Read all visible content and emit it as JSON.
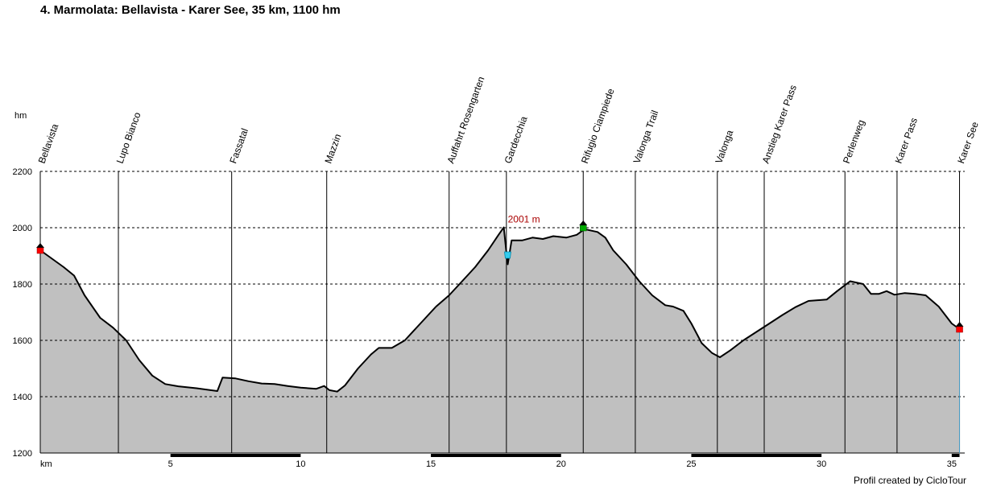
{
  "page": {
    "title": "4. Marmolata: Bellavista - Karer See, 35 km, 1100 hm",
    "credit": "Profil created by CicloTour"
  },
  "chart_data": {
    "type": "area",
    "title": "4. Marmolata: Bellavista - Karer See, 35 km, 1100 hm",
    "xlabel": "km",
    "ylabel": "hm",
    "xlim": [
      0,
      35.5
    ],
    "ylim": [
      1200,
      2200
    ],
    "x_ticks": [
      5,
      10,
      15,
      20,
      25,
      30,
      35
    ],
    "y_ticks": [
      1200,
      1400,
      1600,
      1800,
      2000,
      2200
    ],
    "grid": "horizontal dashed",
    "colors": {
      "fill": "#c0c0c0",
      "line": "#000000",
      "annotation": "#aa0000",
      "marker_start": "#ff0000",
      "marker_summit": "#00aa00",
      "marker_low": "#33ccee"
    },
    "series": [
      {
        "values": [
          {
            "x": 0.0,
            "y": 1920
          },
          {
            "x": 0.3,
            "y": 1900
          },
          {
            "x": 0.9,
            "y": 1860
          },
          {
            "x": 1.3,
            "y": 1830
          },
          {
            "x": 1.7,
            "y": 1760
          },
          {
            "x": 2.3,
            "y": 1680
          },
          {
            "x": 2.8,
            "y": 1645
          },
          {
            "x": 3.3,
            "y": 1600
          },
          {
            "x": 3.8,
            "y": 1530
          },
          {
            "x": 4.3,
            "y": 1475
          },
          {
            "x": 4.8,
            "y": 1445
          },
          {
            "x": 5.3,
            "y": 1437
          },
          {
            "x": 6.0,
            "y": 1430
          },
          {
            "x": 6.8,
            "y": 1420
          },
          {
            "x": 7.0,
            "y": 1468
          },
          {
            "x": 7.5,
            "y": 1465
          },
          {
            "x": 8.0,
            "y": 1455
          },
          {
            "x": 8.5,
            "y": 1447
          },
          {
            "x": 9.0,
            "y": 1445
          },
          {
            "x": 9.5,
            "y": 1438
          },
          {
            "x": 10.0,
            "y": 1432
          },
          {
            "x": 10.6,
            "y": 1428
          },
          {
            "x": 10.9,
            "y": 1438
          },
          {
            "x": 11.1,
            "y": 1423
          },
          {
            "x": 11.4,
            "y": 1418
          },
          {
            "x": 11.7,
            "y": 1440
          },
          {
            "x": 12.2,
            "y": 1500
          },
          {
            "x": 12.7,
            "y": 1550
          },
          {
            "x": 13.0,
            "y": 1573
          },
          {
            "x": 13.5,
            "y": 1573
          },
          {
            "x": 14.0,
            "y": 1600
          },
          {
            "x": 14.6,
            "y": 1660
          },
          {
            "x": 15.2,
            "y": 1720
          },
          {
            "x": 15.7,
            "y": 1760
          },
          {
            "x": 16.2,
            "y": 1810
          },
          {
            "x": 16.7,
            "y": 1860
          },
          {
            "x": 17.2,
            "y": 1920
          },
          {
            "x": 17.6,
            "y": 1975
          },
          {
            "x": 17.8,
            "y": 2001
          },
          {
            "x": 17.9,
            "y": 1910
          },
          {
            "x": 17.95,
            "y": 1870
          },
          {
            "x": 18.1,
            "y": 1955
          },
          {
            "x": 18.5,
            "y": 1955
          },
          {
            "x": 18.9,
            "y": 1965
          },
          {
            "x": 19.3,
            "y": 1960
          },
          {
            "x": 19.7,
            "y": 1970
          },
          {
            "x": 20.2,
            "y": 1965
          },
          {
            "x": 20.6,
            "y": 1975
          },
          {
            "x": 20.9,
            "y": 1995
          },
          {
            "x": 21.4,
            "y": 1985
          },
          {
            "x": 21.7,
            "y": 1965
          },
          {
            "x": 22.0,
            "y": 1920
          },
          {
            "x": 22.5,
            "y": 1870
          },
          {
            "x": 23.0,
            "y": 1810
          },
          {
            "x": 23.5,
            "y": 1760
          },
          {
            "x": 24.0,
            "y": 1725
          },
          {
            "x": 24.3,
            "y": 1720
          },
          {
            "x": 24.7,
            "y": 1705
          },
          {
            "x": 25.0,
            "y": 1660
          },
          {
            "x": 25.4,
            "y": 1590
          },
          {
            "x": 25.8,
            "y": 1555
          },
          {
            "x": 26.1,
            "y": 1540
          },
          {
            "x": 26.5,
            "y": 1565
          },
          {
            "x": 27.0,
            "y": 1600
          },
          {
            "x": 27.5,
            "y": 1630
          },
          {
            "x": 28.0,
            "y": 1660
          },
          {
            "x": 28.5,
            "y": 1690
          },
          {
            "x": 29.0,
            "y": 1718
          },
          {
            "x": 29.5,
            "y": 1740
          },
          {
            "x": 30.2,
            "y": 1745
          },
          {
            "x": 30.6,
            "y": 1775
          },
          {
            "x": 31.1,
            "y": 1810
          },
          {
            "x": 31.6,
            "y": 1800
          },
          {
            "x": 31.9,
            "y": 1765
          },
          {
            "x": 32.2,
            "y": 1765
          },
          {
            "x": 32.5,
            "y": 1775
          },
          {
            "x": 32.8,
            "y": 1762
          },
          {
            "x": 33.2,
            "y": 1768
          },
          {
            "x": 33.6,
            "y": 1765
          },
          {
            "x": 34.0,
            "y": 1760
          },
          {
            "x": 34.5,
            "y": 1720
          },
          {
            "x": 35.0,
            "y": 1660
          },
          {
            "x": 35.3,
            "y": 1640
          }
        ]
      }
    ],
    "waypoints": [
      {
        "label": "Bellavista",
        "x": 0.0
      },
      {
        "label": "Lupo Bianco",
        "x": 3.0
      },
      {
        "label": "Fassatal",
        "x": 7.35
      },
      {
        "label": "Mazzin",
        "x": 11.0
      },
      {
        "label": "Auffahrt Rosengarten",
        "x": 15.7
      },
      {
        "label": "Gardecchia",
        "x": 17.9
      },
      {
        "label": "Rifugio Ciampiede",
        "x": 20.85
      },
      {
        "label": "Valonga Trail",
        "x": 22.85
      },
      {
        "label": "Valonga",
        "x": 26.0
      },
      {
        "label": "Anstieg Karer Pass",
        "x": 27.8
      },
      {
        "label": "Perlenweg",
        "x": 30.9
      },
      {
        "label": "Karer Pass",
        "x": 32.9
      },
      {
        "label": "Karer See",
        "x": 35.3
      }
    ],
    "annotations": [
      {
        "text": "2001 m",
        "x": 17.8,
        "y": 2001
      }
    ],
    "markers": [
      {
        "type": "start",
        "x": 0.0,
        "y": 1920
      },
      {
        "type": "summit",
        "x": 20.85,
        "y": 2000
      },
      {
        "type": "low",
        "x": 17.95,
        "y": 1900
      },
      {
        "type": "end",
        "x": 35.3,
        "y": 1640
      }
    ]
  }
}
